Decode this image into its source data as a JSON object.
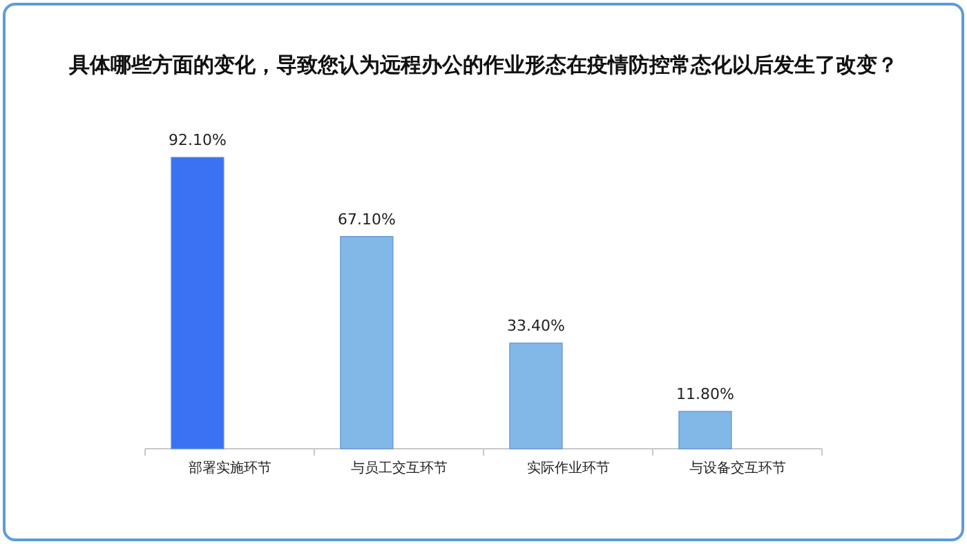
{
  "chart_data": {
    "type": "bar",
    "title": "具体哪些方面的变化，导致您认为远程办公的作业形态在疫情防控常态化以后发生了改变？",
    "categories": [
      "部署实施环节",
      "与员工交互环节",
      "实际作业环节",
      "与设备交互环节"
    ],
    "values": [
      92.1,
      67.1,
      33.4,
      11.8
    ],
    "colors": [
      "#3a72f3",
      "#82b8e8",
      "#82b8e8",
      "#82b8e8"
    ],
    "value_labels": [
      "92.10%",
      "67.10%",
      "33.40%",
      "11.80%"
    ]
  }
}
